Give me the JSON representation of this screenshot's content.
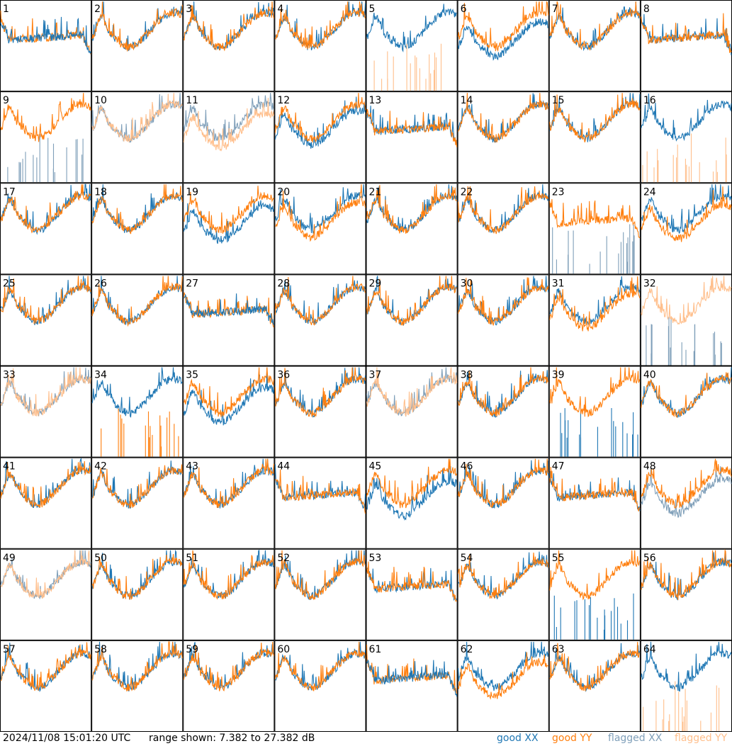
{
  "footer": {
    "timestamp": "2024/11/08 15:01:20 UTC",
    "range_text": "range shown: 7.382 to 27.382 dB",
    "legend": {
      "good_xx": "good XX",
      "good_yy": "good YY",
      "flagged_xx": "flagged XX",
      "flagged_yy": "flagged YY"
    }
  },
  "colors": {
    "good_xx": "#1f77b4",
    "good_yy": "#ff7f0e",
    "flagged_xx": "#7f9fb9",
    "flagged_yy": "#ffbf8c"
  },
  "chart_data": {
    "type": "line",
    "grid_layout": {
      "rows": 8,
      "cols": 8
    },
    "ylim_db": [
      7.382,
      27.382
    ],
    "tiles": [
      {
        "label": "1",
        "xx": "good",
        "yy": "good",
        "shape": "dip",
        "order": "yy"
      },
      {
        "label": "2",
        "xx": "good",
        "yy": "good",
        "shape": "std"
      },
      {
        "label": "3",
        "xx": "good",
        "yy": "good",
        "shape": "std"
      },
      {
        "label": "4",
        "xx": "good",
        "yy": "good",
        "shape": "std"
      },
      {
        "label": "5",
        "xx": "good",
        "yy": "flagged",
        "shape": "std",
        "yy_mode": "spikes"
      },
      {
        "label": "6",
        "xx": "good",
        "yy": "good",
        "shape": "std",
        "xx_offset": -2
      },
      {
        "label": "7",
        "xx": "good",
        "yy": "good",
        "shape": "std"
      },
      {
        "label": "8",
        "xx": "good",
        "yy": "good",
        "shape": "dip"
      },
      {
        "label": "9",
        "xx": "flagged",
        "yy": "good",
        "shape": "std",
        "xx_mode": "spikes"
      },
      {
        "label": "10",
        "xx": "flagged",
        "yy": "flagged",
        "shape": "std"
      },
      {
        "label": "11",
        "xx": "flagged",
        "yy": "flagged",
        "shape": "std",
        "yy_offset": -2
      },
      {
        "label": "12",
        "xx": "good",
        "yy": "good",
        "shape": "std",
        "xx_offset": -1.5
      },
      {
        "label": "13",
        "xx": "good",
        "yy": "good",
        "shape": "dip"
      },
      {
        "label": "14",
        "xx": "good",
        "yy": "good",
        "shape": "std"
      },
      {
        "label": "15",
        "xx": "good",
        "yy": "good",
        "shape": "std"
      },
      {
        "label": "16",
        "xx": "good",
        "yy": "flagged",
        "shape": "std",
        "yy_mode": "spikes"
      },
      {
        "label": "17",
        "xx": "good",
        "yy": "good",
        "shape": "std"
      },
      {
        "label": "18",
        "xx": "good",
        "yy": "good",
        "shape": "std"
      },
      {
        "label": "19",
        "xx": "good",
        "yy": "good",
        "shape": "std",
        "xx_offset": -2.5
      },
      {
        "label": "20",
        "xx": "good",
        "yy": "good",
        "shape": "std",
        "yy_offset": -1.5
      },
      {
        "label": "21",
        "xx": "good",
        "yy": "good",
        "shape": "std"
      },
      {
        "label": "22",
        "xx": "good",
        "yy": "good",
        "shape": "std"
      },
      {
        "label": "23",
        "xx": "flagged",
        "yy": "good",
        "shape": "dip",
        "xx_mode": "spikes"
      },
      {
        "label": "24",
        "xx": "good",
        "yy": "good",
        "shape": "std",
        "yy_offset": -2
      },
      {
        "label": "25",
        "xx": "good",
        "yy": "good",
        "shape": "std"
      },
      {
        "label": "26",
        "xx": "good",
        "yy": "good",
        "shape": "std"
      },
      {
        "label": "27",
        "xx": "good",
        "yy": "good",
        "shape": "dip",
        "order": "yy"
      },
      {
        "label": "28",
        "xx": "good",
        "yy": "good",
        "shape": "std"
      },
      {
        "label": "29",
        "xx": "good",
        "yy": "good",
        "shape": "std"
      },
      {
        "label": "30",
        "xx": "good",
        "yy": "good",
        "shape": "std"
      },
      {
        "label": "31",
        "xx": "good",
        "yy": "good",
        "shape": "std",
        "yy_offset": -1.5
      },
      {
        "label": "32",
        "xx": "flagged",
        "yy": "flagged",
        "shape": "std",
        "xx_mode": "spikes"
      },
      {
        "label": "33",
        "xx": "flagged",
        "yy": "flagged",
        "shape": "std"
      },
      {
        "label": "34",
        "xx": "good",
        "yy": "good",
        "shape": "std",
        "yy_mode": "spikes"
      },
      {
        "label": "35",
        "xx": "good",
        "yy": "good",
        "shape": "std",
        "xx_offset": -2
      },
      {
        "label": "36",
        "xx": "good",
        "yy": "good",
        "shape": "std"
      },
      {
        "label": "37",
        "xx": "flagged",
        "yy": "flagged",
        "shape": "std"
      },
      {
        "label": "38",
        "xx": "good",
        "yy": "good",
        "shape": "std"
      },
      {
        "label": "39",
        "xx": "good",
        "yy": "good",
        "shape": "std",
        "xx_mode": "spikes"
      },
      {
        "label": "40",
        "xx": "good",
        "yy": "good",
        "shape": "std"
      },
      {
        "label": "41",
        "xx": "good",
        "yy": "good",
        "shape": "std"
      },
      {
        "label": "42",
        "xx": "good",
        "yy": "good",
        "shape": "std"
      },
      {
        "label": "43",
        "xx": "good",
        "yy": "good",
        "shape": "std"
      },
      {
        "label": "44",
        "xx": "good",
        "yy": "good",
        "shape": "dip"
      },
      {
        "label": "45",
        "xx": "good",
        "yy": "good",
        "shape": "std",
        "xx_offset": -2.5
      },
      {
        "label": "46",
        "xx": "good",
        "yy": "good",
        "shape": "std"
      },
      {
        "label": "47",
        "xx": "good",
        "yy": "good",
        "shape": "dip"
      },
      {
        "label": "48",
        "xx": "flagged",
        "yy": "good",
        "shape": "std",
        "xx_offset": -2
      },
      {
        "label": "49",
        "xx": "flagged",
        "yy": "flagged",
        "shape": "std"
      },
      {
        "label": "50",
        "xx": "good",
        "yy": "good",
        "shape": "std"
      },
      {
        "label": "51",
        "xx": "good",
        "yy": "good",
        "shape": "std"
      },
      {
        "label": "52",
        "xx": "good",
        "yy": "good",
        "shape": "std"
      },
      {
        "label": "53",
        "xx": "good",
        "yy": "good",
        "shape": "dip"
      },
      {
        "label": "54",
        "xx": "good",
        "yy": "good",
        "shape": "std"
      },
      {
        "label": "55",
        "xx": "good",
        "yy": "good",
        "shape": "std",
        "xx_mode": "spikes"
      },
      {
        "label": "56",
        "xx": "good",
        "yy": "good",
        "shape": "std"
      },
      {
        "label": "57",
        "xx": "good",
        "yy": "good",
        "shape": "std"
      },
      {
        "label": "58",
        "xx": "good",
        "yy": "good",
        "shape": "std"
      },
      {
        "label": "59",
        "xx": "good",
        "yy": "good",
        "shape": "std"
      },
      {
        "label": "60",
        "xx": "good",
        "yy": "good",
        "shape": "std"
      },
      {
        "label": "61",
        "xx": "good",
        "yy": "good",
        "shape": "dip",
        "order": "yy"
      },
      {
        "label": "62",
        "xx": "good",
        "yy": "good",
        "shape": "std",
        "yy_offset": -2
      },
      {
        "label": "63",
        "xx": "good",
        "yy": "good",
        "shape": "std"
      },
      {
        "label": "64",
        "xx": "good",
        "yy": "flagged",
        "shape": "std",
        "yy_mode": "spikes"
      }
    ]
  }
}
